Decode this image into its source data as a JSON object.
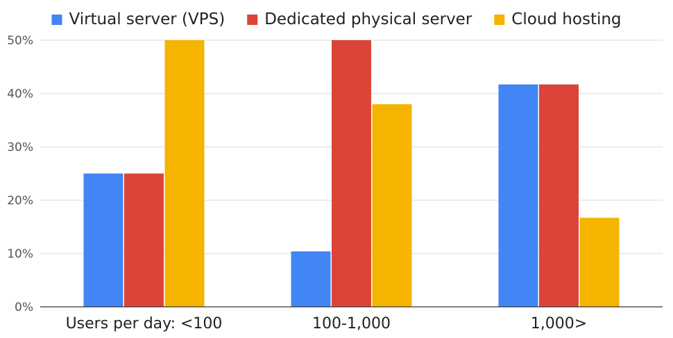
{
  "chart_data": {
    "type": "bar",
    "title": "",
    "xlabel": "",
    "ylabel": "",
    "categories": [
      "Users per day: <100",
      "100-1,000",
      "1,000>"
    ],
    "series": [
      {
        "name": "Virtual server (VPS)",
        "color": "#4285F4",
        "values": [
          25,
          10.4,
          41.7
        ]
      },
      {
        "name": "Dedicated physical server",
        "color": "#DB4437",
        "values": [
          25,
          50,
          41.7
        ]
      },
      {
        "name": "Cloud hosting",
        "color": "#F4B400",
        "values": [
          50,
          38,
          16.7
        ]
      }
    ],
    "ylim": [
      0,
      50
    ],
    "yticks": [
      0,
      10,
      20,
      30,
      40,
      50
    ],
    "ytick_labels": [
      "0%",
      "10%",
      "20%",
      "30%",
      "40%",
      "50%"
    ],
    "grid": true,
    "legend_position": "top"
  }
}
